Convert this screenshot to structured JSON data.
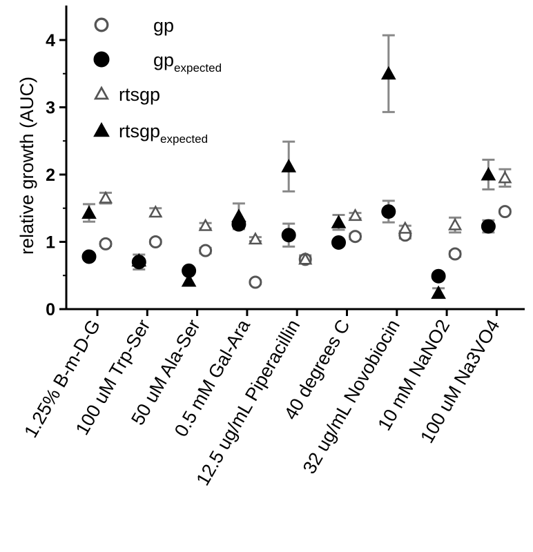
{
  "chart_data": {
    "type": "scatter",
    "title": "",
    "xlabel": "",
    "ylabel": "relative growth (AUC)",
    "ylim": [
      0,
      4.5
    ],
    "yticks": [
      "0",
      "1",
      "2",
      "3",
      "4"
    ],
    "grid": false,
    "legend_position": "top-left",
    "categories": [
      "1.25% B-m-D-G",
      "100 uM Trp-Ser",
      "50 uM Ala-Ser",
      "0.5 mM Gal-Ara",
      "12.5 ug/mL Piperacillin",
      "40 degrees C",
      "32 ug/mL Novobiocin",
      "10 mM NaNO2",
      "100 uM Na3VO4"
    ],
    "series": [
      {
        "name": "gp",
        "marker": "open-circle",
        "values": [
          0.97,
          1.0,
          0.87,
          0.4,
          0.74,
          1.08,
          1.1,
          0.82,
          1.45
        ],
        "errors": [
          0.03,
          0.03,
          0.04,
          0.03,
          0.06,
          0.04,
          0.05,
          0.04,
          0.03
        ]
      },
      {
        "name": "gp",
        "name_sub": "expected",
        "marker": "filled-circle",
        "values": [
          0.78,
          0.7,
          0.57,
          1.26,
          1.1,
          0.99,
          1.45,
          0.49,
          1.23
        ],
        "errors": [
          0.0,
          0.11,
          0.0,
          0.04,
          0.17,
          0.0,
          0.16,
          0.04,
          0.09
        ]
      },
      {
        "name": "rtsgp",
        "marker": "open-triangle",
        "values": [
          1.65,
          1.44,
          1.24,
          1.04,
          0.74,
          1.39,
          1.2,
          1.25,
          1.95
        ],
        "errors": [
          0.08,
          0.06,
          0.04,
          0.03,
          0.04,
          0.04,
          0.04,
          0.11,
          0.13
        ]
      },
      {
        "name": "rtsgp",
        "name_sub": "expected",
        "marker": "filled-triangle",
        "values": [
          1.43,
          0.72,
          0.42,
          1.38,
          2.12,
          1.29,
          3.5,
          0.24,
          2.0
        ],
        "errors": [
          0.13,
          0.0,
          0.0,
          0.19,
          0.37,
          0.11,
          0.57,
          0.07,
          0.22
        ]
      }
    ]
  }
}
